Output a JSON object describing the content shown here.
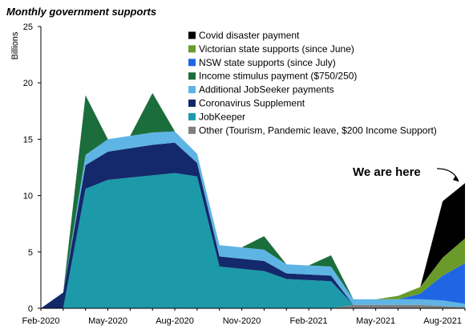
{
  "chart_data": {
    "type": "area",
    "stacked": true,
    "title": "Monthly government supports",
    "xlabel": "",
    "ylabel": "Billions",
    "ylim": [
      0,
      25
    ],
    "yticks": [
      0,
      5,
      10,
      15,
      20,
      25
    ],
    "x": [
      "Feb-2020",
      "Mar-2020",
      "Apr-2020",
      "May-2020",
      "Jun-2020",
      "Jul-2020",
      "Aug-2020",
      "Sep-2020",
      "Oct-2020",
      "Nov-2020",
      "Dec-2020",
      "Jan-2021",
      "Feb-2021",
      "Mar-2021",
      "Apr-2021",
      "May-2021",
      "Jun-2021",
      "Jul-2021",
      "Aug-2021",
      "Sep-2021"
    ],
    "xtick_labels": [
      "Feb-2020",
      "May-2020",
      "Aug-2020",
      "Nov-2020",
      "Feb-2021",
      "May-2021",
      "Aug-2021"
    ],
    "grid": false,
    "legend_position": "top-right",
    "series": [
      {
        "name": "Other (Tourism, Pandemic leave, $200 Income Support)",
        "color": "#7f7f7f",
        "values": [
          0,
          0,
          0,
          0,
          0,
          0,
          0,
          0,
          0,
          0,
          0,
          0,
          0,
          0,
          0.3,
          0.3,
          0.3,
          0.3,
          0.2,
          0.1
        ]
      },
      {
        "name": "JobKeeper",
        "color": "#1c9aaa",
        "values": [
          0,
          0,
          10.6,
          11.4,
          11.6,
          11.8,
          12.0,
          11.7,
          3.7,
          3.5,
          3.3,
          2.6,
          2.5,
          2.4,
          0,
          0,
          0,
          0,
          0,
          0
        ]
      },
      {
        "name": "Coronavirus Supplement",
        "color": "#13296b",
        "values": [
          0,
          1.4,
          2.1,
          2.5,
          2.6,
          2.7,
          2.7,
          1.2,
          0.9,
          0.9,
          0.9,
          0.5,
          0.5,
          0.5,
          0,
          0,
          0,
          0,
          0,
          0
        ]
      },
      {
        "name": "Additional JobSeeker payments",
        "color": "#5eb4e4",
        "values": [
          0,
          0,
          0.9,
          1.1,
          1.1,
          1.1,
          1.0,
          0.8,
          1.0,
          1.0,
          1.0,
          0.8,
          0.8,
          0.8,
          0.5,
          0.5,
          0.5,
          0.5,
          0.5,
          0.3
        ]
      },
      {
        "name": "Income stimulus payment ($750/250)",
        "color": "#1b6e3c",
        "values": [
          0,
          0,
          5.3,
          0,
          0,
          3.5,
          0,
          0,
          0,
          0,
          1.2,
          0,
          0,
          1.0,
          0,
          0,
          0,
          0,
          0,
          0
        ]
      },
      {
        "name": "NSW state supports (since July)",
        "color": "#1f66e5",
        "values": [
          0,
          0,
          0,
          0,
          0,
          0,
          0,
          0,
          0,
          0,
          0,
          0,
          0,
          0,
          0,
          0,
          0,
          0.5,
          2.2,
          3.6
        ]
      },
      {
        "name": "Victorian state supports (since June)",
        "color": "#6a9b2a",
        "values": [
          0,
          0,
          0,
          0,
          0,
          0,
          0,
          0,
          0,
          0,
          0,
          0,
          0,
          0,
          0,
          0,
          0.3,
          0.6,
          1.6,
          2.2
        ]
      },
      {
        "name": "Covid disaster payment",
        "color": "#000000",
        "values": [
          0,
          0,
          0,
          0,
          0,
          0,
          0,
          0,
          0,
          0,
          0,
          0,
          0,
          0,
          0,
          0,
          0,
          0,
          5.0,
          4.9
        ]
      }
    ],
    "legend_order": [
      "Covid disaster payment",
      "Victorian state supports (since June)",
      "NSW state supports (since July)",
      "Income stimulus payment ($750/250)",
      "Additional JobSeeker payments",
      "Coronavirus Supplement",
      "JobKeeper",
      "Other (Tourism, Pandemic leave, $200 Income Support)"
    ],
    "annotations": [
      {
        "text": "We are here",
        "arrow_to": "Sep-2021"
      }
    ]
  }
}
